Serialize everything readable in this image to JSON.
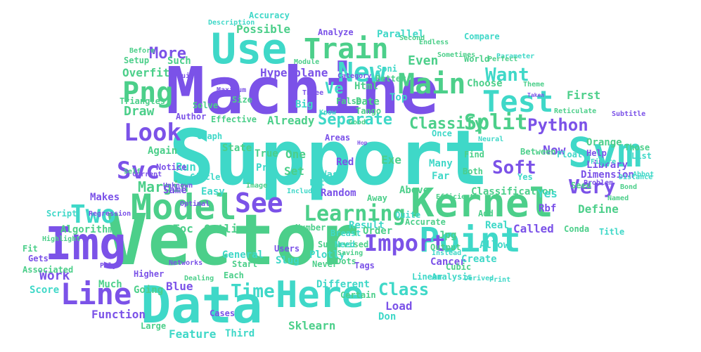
{
  "palette": {
    "purple": "#7b52e8",
    "teal": "#3fd8c8",
    "green": "#4ccf8a"
  },
  "words": [
    "Support",
    "Vector",
    "Machine",
    "Data",
    "Img",
    "Kernel",
    "Use",
    "Model",
    "Point",
    "Here",
    "Svm",
    "Line",
    "Two",
    "Train",
    "Test",
    "Main",
    "New",
    "Png",
    "Look",
    "Learning",
    "Import",
    "Split",
    "Svc",
    "See",
    "More",
    "Python",
    "Very",
    "Time",
    "Class",
    "Soft",
    "Margin",
    "Want",
    "Classify",
    "Separate",
    "Hyperplane",
    "Draw",
    "Overfit",
    "Even",
    "Possible",
    "Accuracy",
    "Parallel",
    "Analyze",
    "Such",
    "Already",
    "Library",
    "Now",
    "Dimension",
    "Classification",
    "Outliers",
    "Toc",
    "Random",
    "Define",
    "Called",
    "Real",
    "Blue",
    "Work",
    "Function",
    "Feature",
    "Sklearn",
    "Third",
    "Load",
    "Cancer",
    "Create",
    "Allow",
    "Rbf",
    "Exe",
    "Yes",
    "Easy",
    "Run",
    "Set",
    "One",
    "Again",
    "Makes",
    "Same",
    "Algorithm",
    "Fit",
    "Score",
    "Much",
    "Going",
    "Different",
    "Certain",
    "Don",
    "Cases",
    "Large",
    "Gets",
    "Above",
    "Result",
    "Supervised",
    "Order",
    "Breast",
    "Jpg",
    "Cubic",
    "Title",
    "Conda",
    "First",
    "Between",
    "Float",
    "Help",
    "Orange",
    "Those",
    "List",
    "Seed",
    "Problem",
    "Yes",
    "Many",
    "Both",
    "Far",
    "Find",
    "Wasn",
    "Red",
    "Pre",
    "True",
    "State",
    "Notice",
    "Graph",
    "Effective",
    "Author",
    "Solve",
    "Size",
    "Big",
    "Top",
    "Date",
    "Tango",
    "Html",
    "Ve",
    "Soni",
    "Better",
    "Choose",
    "World",
    "Compare",
    "Parameter",
    "Theme",
    "Taken",
    "Module",
    "Second",
    "Hop",
    "Away",
    "Quite",
    "Accurate",
    "Output",
    "Add",
    "Lot",
    "Include",
    "Slug",
    "Plotly",
    "Never",
    "Dots",
    "Tags",
    "Linear",
    "Analysis",
    "Need",
    "Users",
    "General",
    "Start",
    "Each",
    "Higher",
    "Networks",
    "Dealing",
    "Script",
    "Regression",
    "Number",
    "Poly",
    "Image",
    "Circle",
    "Optimal",
    "Areas",
    "Once",
    "Know",
    "Good",
    "Three",
    "False",
    "Description",
    "Unknown",
    "Current",
    "Self",
    "Maximum",
    "Category",
    "Setup",
    "Triangles",
    "Before",
    "Associated",
    "Highlight",
    "Required",
    "Endless",
    "Perfect",
    "Sometimes",
    "Neural",
    "Reticulate",
    "Subtitle",
    "Named",
    "Instead",
    "Efficient",
    "Derived",
    "Print",
    "Saving",
    "Distance",
    "Bond",
    "Abbot",
    "Figure"
  ]
}
